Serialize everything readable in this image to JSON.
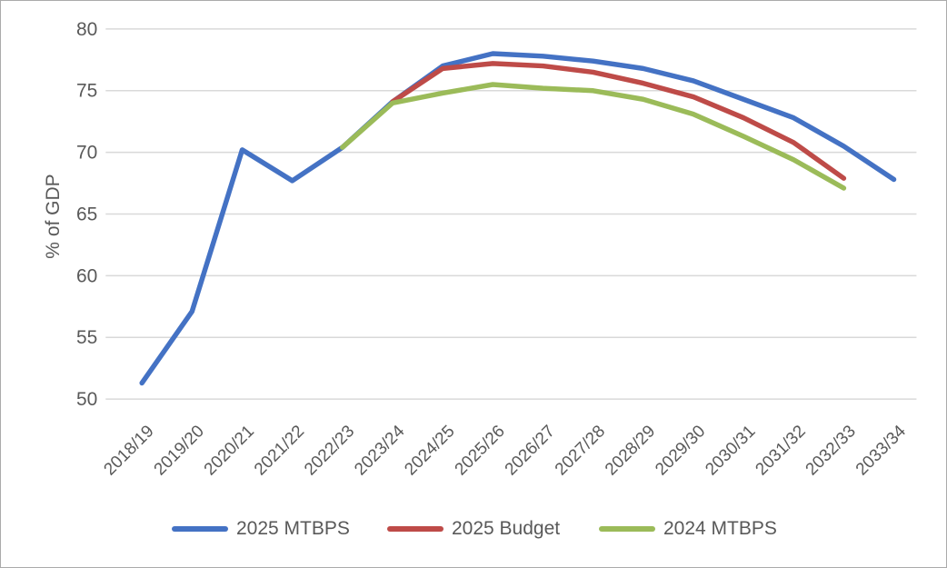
{
  "figure": {
    "background": "#FFFFFF",
    "border_color": "#ABABAB",
    "text_color": "#595959",
    "gridline_color": "#D9D9D9"
  },
  "chart_data": {
    "type": "line",
    "title": "",
    "xlabel": "",
    "ylabel": "% of GDP",
    "ylim": [
      50,
      80
    ],
    "yticks": [
      50,
      55,
      60,
      65,
      70,
      75,
      80
    ],
    "grid": true,
    "legend_position": "bottom",
    "categories": [
      "2018/19",
      "2019/20",
      "2020/21",
      "2021/22",
      "2022/23",
      "2023/24",
      "2024/25",
      "2025/26",
      "2026/27",
      "2027/28",
      "2028/29",
      "2029/30",
      "2030/31",
      "2031/32",
      "2032/33",
      "2033/34"
    ],
    "series": [
      {
        "name": "2025 MTBPS",
        "color": "#4472C4",
        "values": [
          51.3,
          57.1,
          70.2,
          67.7,
          70.4,
          74.1,
          77.0,
          78.0,
          77.8,
          77.4,
          76.8,
          75.8,
          74.3,
          72.8,
          70.5,
          67.8
        ]
      },
      {
        "name": "2025 Budget",
        "color": "#BE4B48",
        "values": [
          null,
          null,
          null,
          null,
          null,
          74.1,
          76.8,
          77.2,
          77.0,
          76.5,
          75.6,
          74.5,
          72.8,
          70.8,
          67.9,
          null
        ]
      },
      {
        "name": "2024 MTBPS",
        "color": "#9BBB59",
        "values": [
          null,
          null,
          null,
          null,
          70.4,
          74.0,
          74.8,
          75.5,
          75.2,
          75.0,
          74.3,
          73.1,
          71.3,
          69.4,
          67.1,
          null
        ]
      }
    ]
  }
}
